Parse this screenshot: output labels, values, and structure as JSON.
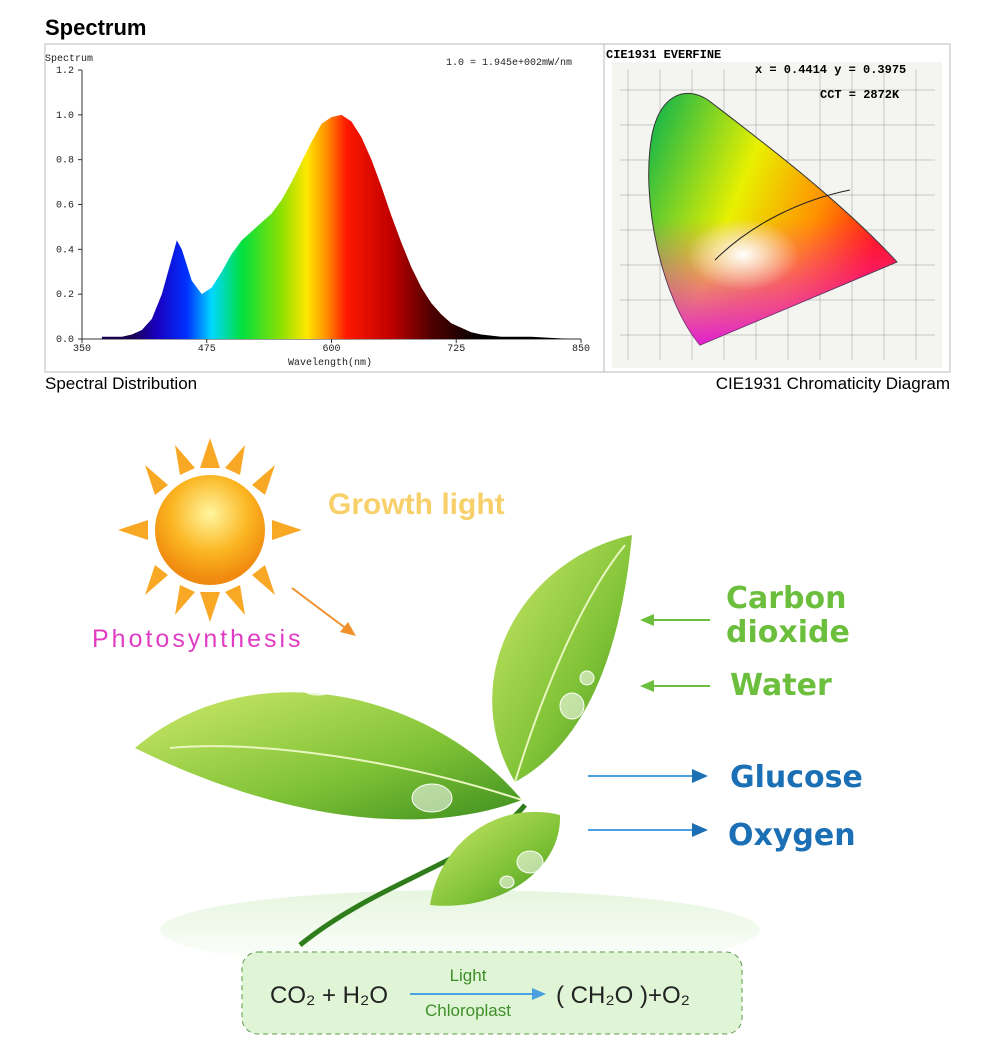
{
  "heading": "Spectrum",
  "chart_data": {
    "type": "area",
    "y_label": "Spectrum",
    "note": "1.0 = 1.945e+002mW/nm",
    "x_label": "Wavelength(nm)",
    "x": [
      370,
      380,
      390,
      400,
      410,
      420,
      430,
      440,
      445,
      450,
      460,
      470,
      480,
      490,
      500,
      510,
      520,
      530,
      540,
      550,
      560,
      570,
      580,
      590,
      600,
      610,
      620,
      630,
      640,
      650,
      660,
      670,
      680,
      690,
      700,
      710,
      720,
      730,
      740,
      750,
      770,
      800,
      840
    ],
    "values": [
      0.01,
      0.01,
      0.01,
      0.02,
      0.04,
      0.09,
      0.2,
      0.36,
      0.44,
      0.4,
      0.26,
      0.2,
      0.23,
      0.3,
      0.38,
      0.44,
      0.48,
      0.52,
      0.56,
      0.62,
      0.7,
      0.79,
      0.88,
      0.96,
      0.99,
      1.0,
      0.97,
      0.9,
      0.8,
      0.68,
      0.55,
      0.43,
      0.32,
      0.23,
      0.16,
      0.11,
      0.07,
      0.05,
      0.03,
      0.02,
      0.01,
      0.01,
      0
    ],
    "xlim": [
      350,
      850
    ],
    "xticks": [
      350,
      475,
      600,
      725,
      850
    ],
    "ylim": [
      0,
      1.2
    ],
    "yticks": [
      {
        "value": 0,
        "label": "0.0"
      },
      0.2,
      0.4,
      0.6,
      0.8,
      {
        "value": 1,
        "label": "1.0"
      },
      1.2
    ]
  },
  "captions": {
    "left": "Spectral Distribution",
    "right": "CIE1931 Chromaticity Diagram"
  },
  "cie": {
    "title": "CIE1931  EVERFINE",
    "coordinates": "x = 0.4414 y = 0.3975",
    "cct": "CCT = 2872K"
  },
  "illustration": {
    "growth": "Growth light",
    "process": "Photosynthesis",
    "inputs": [
      {
        "lines": [
          "Carbon",
          "dioxide"
        ]
      },
      {
        "lines": [
          "Water"
        ]
      }
    ],
    "outputs": [
      "Glucose",
      "Oxygen"
    ],
    "equation": {
      "reactants": "CO₂ + H₂O",
      "condition": "Light",
      "site": "Chloroplast",
      "products": "( CH₂O )+O₂"
    }
  }
}
